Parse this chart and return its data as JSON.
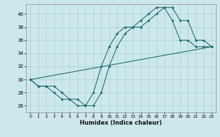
{
  "xlabel": "Humidex (Indice chaleur)",
  "bg_color": "#cde8ec",
  "grid_color": "#a8cdd4",
  "line_color": "#1e6e68",
  "xlim": [
    -0.5,
    23.5
  ],
  "ylim": [
    25.0,
    41.5
  ],
  "xticks": [
    0,
    1,
    2,
    3,
    4,
    5,
    6,
    7,
    8,
    9,
    10,
    11,
    12,
    13,
    14,
    15,
    16,
    17,
    18,
    19,
    20,
    21,
    22,
    23
  ],
  "yticks": [
    26,
    28,
    30,
    32,
    34,
    36,
    38,
    40
  ],
  "line1_x": [
    0,
    1,
    2,
    3,
    4,
    5,
    6,
    7,
    8,
    9,
    10,
    11,
    12,
    13,
    14,
    15,
    16,
    17,
    18,
    19,
    20,
    21,
    22,
    23
  ],
  "line1_y": [
    30,
    29,
    29,
    28,
    27,
    27,
    26,
    26,
    28,
    32,
    35,
    37,
    38,
    38,
    39,
    40,
    41,
    41,
    39,
    36,
    36,
    35,
    35,
    35
  ],
  "line2_x": [
    0,
    1,
    2,
    3,
    4,
    5,
    6,
    7,
    8,
    9,
    10,
    11,
    12,
    13,
    14,
    15,
    16,
    17,
    18,
    19,
    20,
    21,
    22,
    23
  ],
  "line2_y": [
    30,
    29,
    29,
    29,
    28,
    27,
    27,
    26,
    26,
    28,
    32,
    35,
    37,
    38,
    38,
    39,
    40,
    41,
    41,
    39,
    39,
    36,
    36,
    35
  ],
  "line3_x": [
    0,
    23
  ],
  "line3_y": [
    30,
    35
  ]
}
